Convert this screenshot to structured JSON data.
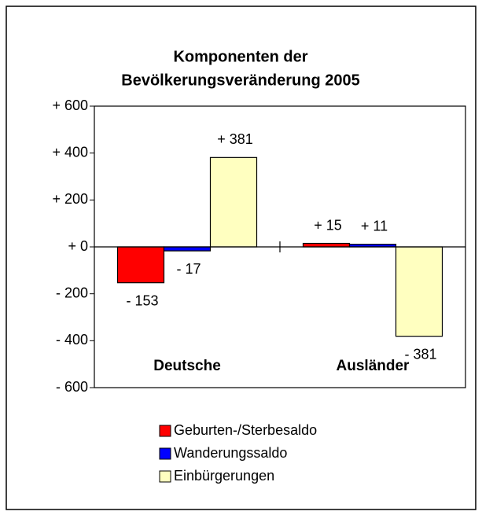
{
  "chart_data": {
    "type": "bar",
    "title": [
      "Komponenten der",
      "Bevölkerungsveränderung 2005"
    ],
    "categories": [
      "Deutsche",
      "Ausländer"
    ],
    "series": [
      {
        "name": "Geburten-/Sterbesaldo",
        "color": "#ff0000",
        "values": [
          -153,
          15
        ],
        "value_labels": [
          "- 153",
          "+ 15"
        ]
      },
      {
        "name": "Wanderungssaldo",
        "color": "#0000ff",
        "values": [
          -17,
          11
        ],
        "value_labels": [
          "- 17",
          "+ 11"
        ]
      },
      {
        "name": "Einbürgerungen",
        "color": "#ffffc0",
        "values": [
          381,
          -381
        ],
        "value_labels": [
          "+ 381",
          "- 381"
        ]
      }
    ],
    "ylim": [
      -600,
      600
    ],
    "yticks": [
      {
        "value": -600,
        "label": "- 600"
      },
      {
        "value": -400,
        "label": "- 400"
      },
      {
        "value": -200,
        "label": "- 200"
      },
      {
        "value": 0,
        "label": "+ 0"
      },
      {
        "value": 200,
        "label": "+ 200"
      },
      {
        "value": 400,
        "label": "+ 400"
      },
      {
        "value": 600,
        "label": "+ 600"
      }
    ],
    "grid": false
  }
}
